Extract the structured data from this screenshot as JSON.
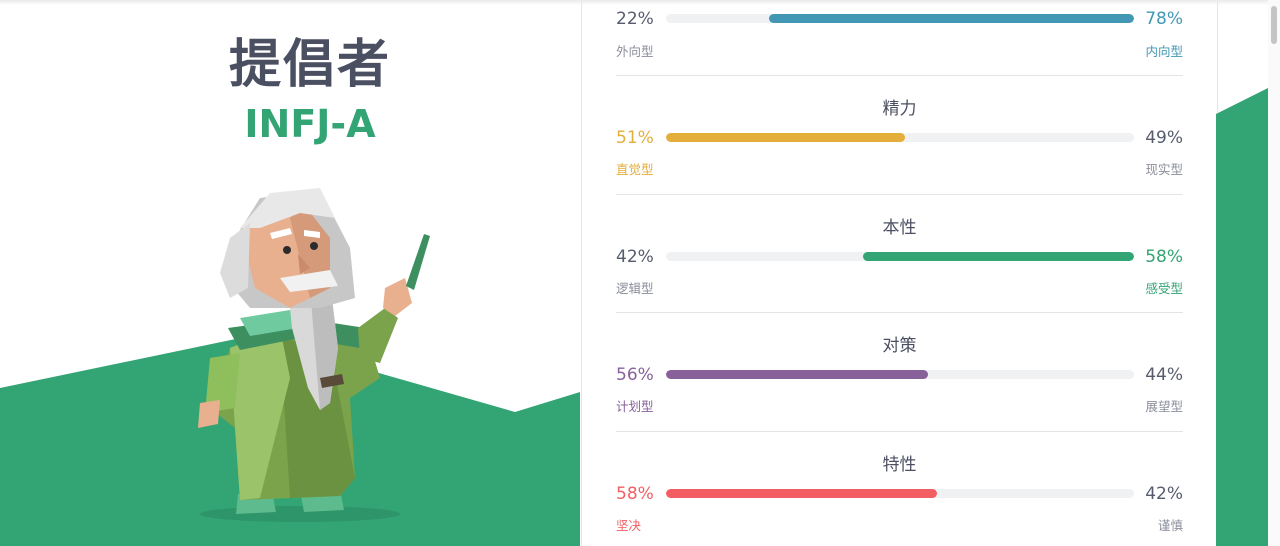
{
  "personality": {
    "title": "提倡者",
    "code": "INFJ-A"
  },
  "colors": {
    "green": "#33a474",
    "blue": "#4298b4",
    "yellow": "#e4ae3a",
    "purple": "#88619a",
    "red": "#f25e62",
    "gray_text": "#575c6d"
  },
  "traits": [
    {
      "name": "",
      "left_pct": "22%",
      "right_pct": "78%",
      "left_label": "外向型",
      "right_label": "内向型",
      "dominant": "right",
      "value": 78,
      "color": "#4298b4"
    },
    {
      "name": "精力",
      "left_pct": "51%",
      "right_pct": "49%",
      "left_label": "直觉型",
      "right_label": "现实型",
      "dominant": "left",
      "value": 51,
      "color": "#e4ae3a"
    },
    {
      "name": "本性",
      "left_pct": "42%",
      "right_pct": "58%",
      "left_label": "逻辑型",
      "right_label": "感受型",
      "dominant": "right",
      "value": 58,
      "color": "#33a474"
    },
    {
      "name": "对策",
      "left_pct": "56%",
      "right_pct": "44%",
      "left_label": "计划型",
      "right_label": "展望型",
      "dominant": "left",
      "value": 56,
      "color": "#88619a"
    },
    {
      "name": "特性",
      "left_pct": "58%",
      "right_pct": "42%",
      "left_label": "坚决",
      "right_label": "谨慎",
      "dominant": "left",
      "value": 58,
      "color": "#f25e62"
    }
  ]
}
